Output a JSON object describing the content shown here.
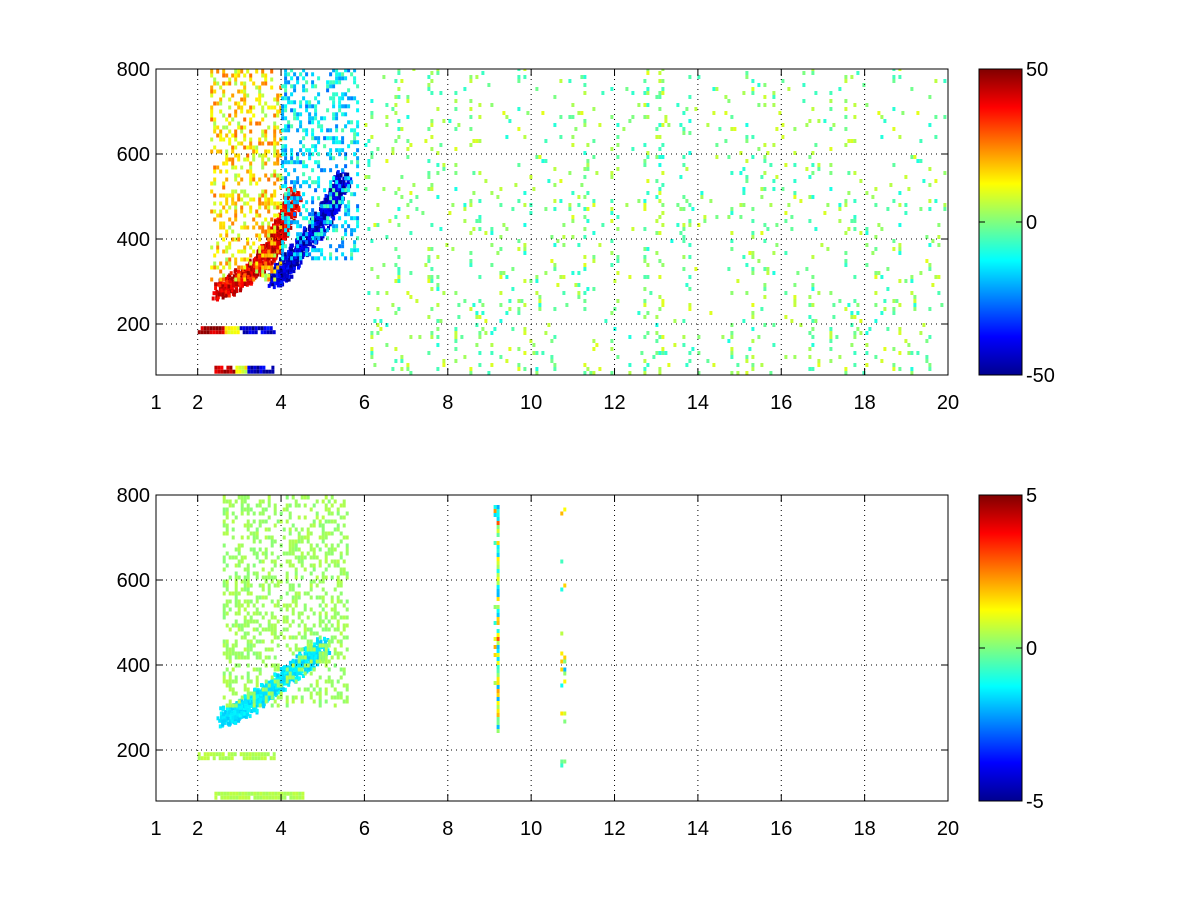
{
  "figure": {
    "background": "#ffffff",
    "colormap": "jet"
  },
  "chart_data": [
    {
      "type": "heatmap",
      "title": "",
      "xlabel": "",
      "ylabel": "",
      "xlim": [
        1,
        20
      ],
      "ylim": [
        80,
        800
      ],
      "x_ticks": [
        1,
        2,
        4,
        6,
        8,
        10,
        12,
        14,
        16,
        18,
        20
      ],
      "y_ticks": [
        200,
        400,
        600,
        800
      ],
      "grid": true,
      "colorbar": {
        "min": -50,
        "max": 50,
        "ticks": [
          -50,
          0,
          50
        ]
      },
      "features": [
        {
          "kind": "band",
          "x0": 2.0,
          "x1": 3.8,
          "y": 185,
          "dy": 18,
          "pattern": "red_to_blue"
        },
        {
          "kind": "band",
          "x0": 2.4,
          "x1": 3.8,
          "y": 90,
          "dy": 14,
          "pattern": "red_to_blue"
        },
        {
          "kind": "curve",
          "points": [
            [
              2.5,
              270
            ],
            [
              3,
              300
            ],
            [
              3.5,
              340
            ],
            [
              3.8,
              380
            ],
            [
              4,
              430
            ],
            [
              4.3,
              500
            ]
          ],
          "value": 40
        },
        {
          "kind": "curve",
          "points": [
            [
              3.8,
              300
            ],
            [
              4.1,
              330
            ],
            [
              4.5,
              380
            ],
            [
              4.9,
              430
            ],
            [
              5.2,
              480
            ],
            [
              5.5,
              540
            ]
          ],
          "value": -42
        },
        {
          "kind": "cloud",
          "x0": 2.3,
          "x1": 4.0,
          "y0": 300,
          "y1": 800,
          "value": 15
        },
        {
          "kind": "cloud",
          "x0": 4.0,
          "x1": 5.8,
          "y0": 350,
          "y1": 800,
          "value": -15
        },
        {
          "kind": "scatter",
          "x0": 6.0,
          "x1": 20.0,
          "y0": 80,
          "y1": 800,
          "value_range": [
            -10,
            10
          ],
          "density": 0.06
        }
      ]
    },
    {
      "type": "heatmap",
      "title": "",
      "xlabel": "",
      "ylabel": "",
      "xlim": [
        1,
        20
      ],
      "ylim": [
        80,
        800
      ],
      "x_ticks": [
        1,
        2,
        4,
        6,
        8,
        10,
        12,
        14,
        16,
        18,
        20
      ],
      "y_ticks": [
        200,
        400,
        600,
        800
      ],
      "grid": true,
      "colorbar": {
        "min": -5,
        "max": 5,
        "ticks": [
          -5,
          0,
          5
        ]
      },
      "features": [
        {
          "kind": "band",
          "x0": 2.0,
          "x1": 3.8,
          "y": 185,
          "dy": 18,
          "pattern": "flat",
          "value": 0.5
        },
        {
          "kind": "band",
          "x0": 2.4,
          "x1": 4.5,
          "y": 90,
          "dy": 14,
          "pattern": "flat",
          "value": 0.5
        },
        {
          "kind": "curve",
          "points": [
            [
              2.6,
              270
            ],
            [
              3,
              290
            ],
            [
              3.5,
              320
            ],
            [
              4,
              360
            ],
            [
              4.5,
              400
            ],
            [
              5,
              440
            ]
          ],
          "value": -1.5
        },
        {
          "kind": "cloud",
          "x0": 2.6,
          "x1": 5.6,
          "y0": 300,
          "y1": 800,
          "value": 0.3
        },
        {
          "kind": "scatter",
          "x0": 9.1,
          "x1": 9.3,
          "y0": 240,
          "y1": 770,
          "value_range": [
            -2,
            3
          ],
          "density": 0.3
        },
        {
          "kind": "scatter",
          "x0": 10.7,
          "x1": 10.9,
          "y0": 140,
          "y1": 780,
          "value_range": [
            -2,
            2
          ],
          "density": 0.3
        }
      ]
    }
  ]
}
